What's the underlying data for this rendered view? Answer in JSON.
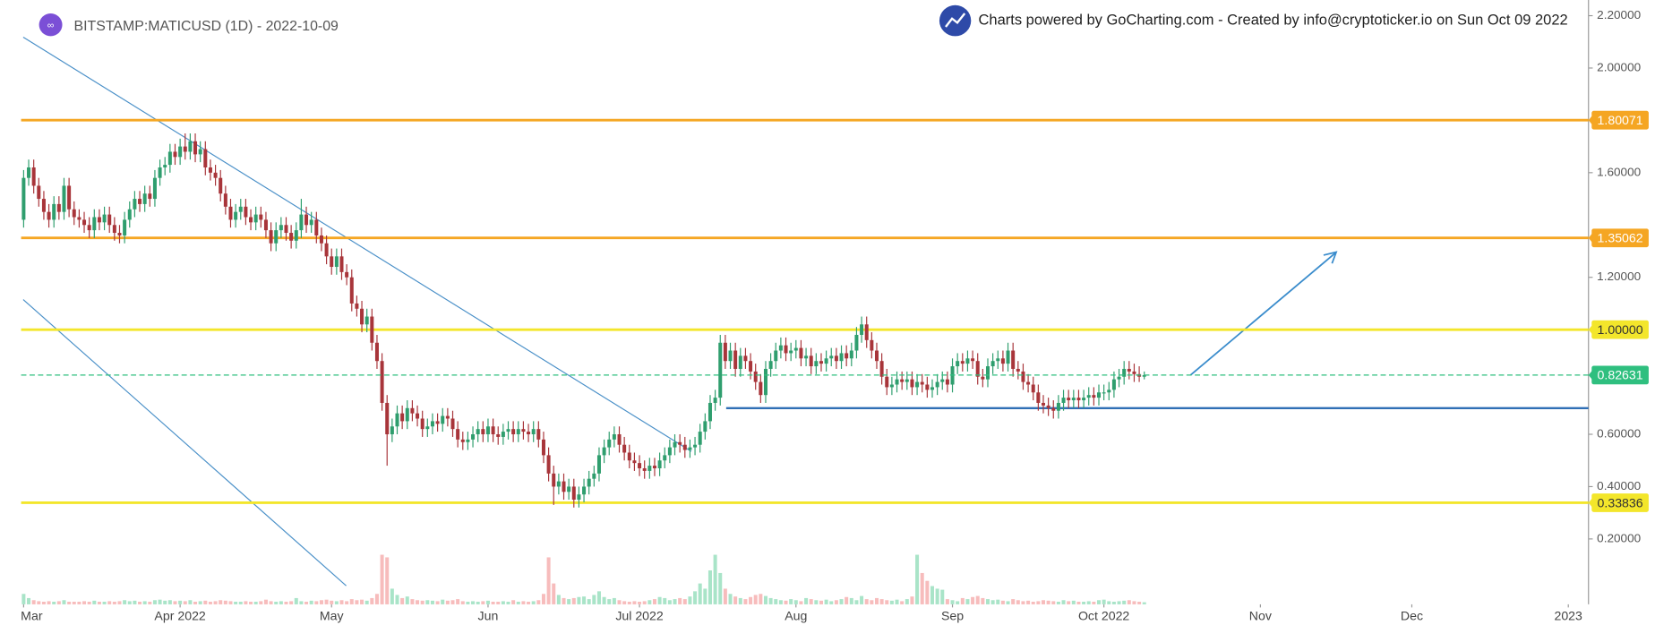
{
  "header": {
    "symbol": "BITSTAMP:MATICUSD (1D) - 2022-10-09",
    "credit": "Charts powered by GoCharting.com - Created by info@cryptoticker.io on Sun Oct 09 2022"
  },
  "chart_data": {
    "type": "candlestick",
    "open": [
      1.42,
      1.58,
      1.62,
      1.55,
      1.5,
      1.45,
      1.42,
      1.48,
      1.45,
      1.55,
      1.46,
      1.43,
      1.42,
      1.4,
      1.38,
      1.43,
      1.41,
      1.44,
      1.4,
      1.37,
      1.36,
      1.42,
      1.46,
      1.5,
      1.48,
      1.52,
      1.5,
      1.58,
      1.62,
      1.63,
      1.68,
      1.66,
      1.7,
      1.68,
      1.72,
      1.67,
      1.69,
      1.62,
      1.6,
      1.58,
      1.52,
      1.47,
      1.42,
      1.45,
      1.47,
      1.43,
      1.41,
      1.44,
      1.42,
      1.38,
      1.33,
      1.38,
      1.4,
      1.37,
      1.34,
      1.38,
      1.44,
      1.4,
      1.42,
      1.36,
      1.33,
      1.28,
      1.24,
      1.28,
      1.22,
      1.2,
      1.1,
      1.08,
      1.02,
      1.05,
      0.95,
      0.88,
      0.72,
      0.6,
      0.63,
      0.68,
      0.65,
      0.7,
      0.68,
      0.66,
      0.62,
      0.63,
      0.65,
      0.64,
      0.67,
      0.66,
      0.62,
      0.58,
      0.57,
      0.58,
      0.6,
      0.62,
      0.6,
      0.63,
      0.6,
      0.59,
      0.61,
      0.62,
      0.6,
      0.62,
      0.61,
      0.6,
      0.62,
      0.58,
      0.52,
      0.45,
      0.4,
      0.42,
      0.38,
      0.4,
      0.35,
      0.37,
      0.4,
      0.43,
      0.45,
      0.52,
      0.55,
      0.58,
      0.6,
      0.56,
      0.53,
      0.5,
      0.49,
      0.47,
      0.46,
      0.48,
      0.47,
      0.5,
      0.52,
      0.55,
      0.57,
      0.56,
      0.54,
      0.55,
      0.56,
      0.61,
      0.65,
      0.72,
      0.74,
      0.95,
      0.88,
      0.92,
      0.85,
      0.9,
      0.88,
      0.84,
      0.8,
      0.75,
      0.85,
      0.88,
      0.92,
      0.94,
      0.91,
      0.92,
      0.93,
      0.89,
      0.9,
      0.86,
      0.88,
      0.87,
      0.89,
      0.9,
      0.88,
      0.91,
      0.89,
      0.92,
      0.98,
      1.02,
      0.96,
      0.92,
      0.88,
      0.82,
      0.78,
      0.79,
      0.81,
      0.8,
      0.81,
      0.78,
      0.8,
      0.79,
      0.77,
      0.78,
      0.8,
      0.81,
      0.79,
      0.86,
      0.88,
      0.87,
      0.89,
      0.88,
      0.82,
      0.81,
      0.86,
      0.88,
      0.89,
      0.87,
      0.92,
      0.85,
      0.84,
      0.8,
      0.79,
      0.76,
      0.72,
      0.71,
      0.7,
      0.69,
      0.72,
      0.74,
      0.73,
      0.74,
      0.73,
      0.74,
      0.75,
      0.74,
      0.76,
      0.76,
      0.77,
      0.81,
      0.82,
      0.85,
      0.84,
      0.83,
      0.82
    ],
    "high": [
      1.61,
      1.65,
      1.65,
      1.58,
      1.53,
      1.48,
      1.51,
      1.51,
      1.58,
      1.58,
      1.49,
      1.46,
      1.45,
      1.43,
      1.46,
      1.46,
      1.47,
      1.47,
      1.43,
      1.4,
      1.45,
      1.49,
      1.53,
      1.53,
      1.55,
      1.55,
      1.61,
      1.65,
      1.66,
      1.71,
      1.71,
      1.73,
      1.75,
      1.75,
      1.75,
      1.72,
      1.72,
      1.65,
      1.63,
      1.61,
      1.55,
      1.5,
      1.48,
      1.5,
      1.5,
      1.46,
      1.47,
      1.47,
      1.45,
      1.41,
      1.41,
      1.43,
      1.43,
      1.4,
      1.41,
      1.5,
      1.47,
      1.45,
      1.45,
      1.39,
      1.36,
      1.31,
      1.31,
      1.31,
      1.25,
      1.23,
      1.13,
      1.11,
      1.08,
      1.08,
      0.98,
      0.91,
      0.75,
      0.66,
      0.71,
      0.71,
      0.73,
      0.73,
      0.71,
      0.69,
      0.66,
      0.68,
      0.68,
      0.7,
      0.7,
      0.69,
      0.65,
      0.61,
      0.61,
      0.63,
      0.65,
      0.65,
      0.66,
      0.66,
      0.63,
      0.64,
      0.65,
      0.65,
      0.65,
      0.65,
      0.64,
      0.65,
      0.65,
      0.61,
      0.55,
      0.48,
      0.45,
      0.45,
      0.43,
      0.43,
      0.4,
      0.43,
      0.46,
      0.48,
      0.55,
      0.58,
      0.61,
      0.63,
      0.63,
      0.59,
      0.56,
      0.53,
      0.52,
      0.5,
      0.51,
      0.51,
      0.53,
      0.55,
      0.58,
      0.6,
      0.6,
      0.59,
      0.58,
      0.59,
      0.64,
      0.68,
      0.75,
      0.77,
      0.98,
      0.98,
      0.95,
      0.95,
      0.93,
      0.93,
      0.91,
      0.87,
      0.83,
      0.88,
      0.91,
      0.95,
      0.97,
      0.97,
      0.95,
      0.96,
      0.96,
      0.93,
      0.93,
      0.91,
      0.91,
      0.92,
      0.93,
      0.93,
      0.94,
      0.94,
      0.95,
      1.01,
      1.05,
      1.05,
      0.99,
      0.95,
      0.91,
      0.85,
      0.82,
      0.84,
      0.84,
      0.84,
      0.84,
      0.83,
      0.83,
      0.82,
      0.81,
      0.83,
      0.84,
      0.84,
      0.89,
      0.91,
      0.91,
      0.92,
      0.92,
      0.91,
      0.85,
      0.89,
      0.91,
      0.92,
      0.92,
      0.95,
      0.95,
      0.88,
      0.87,
      0.83,
      0.82,
      0.79,
      0.75,
      0.74,
      0.73,
      0.75,
      0.77,
      0.77,
      0.77,
      0.77,
      0.77,
      0.78,
      0.78,
      0.79,
      0.79,
      0.8,
      0.84,
      0.85,
      0.88,
      0.88,
      0.87,
      0.86,
      0.84
    ],
    "low": [
      1.39,
      1.55,
      1.52,
      1.47,
      1.42,
      1.39,
      1.39,
      1.42,
      1.42,
      1.43,
      1.4,
      1.39,
      1.37,
      1.35,
      1.35,
      1.38,
      1.38,
      1.37,
      1.34,
      1.33,
      1.33,
      1.39,
      1.43,
      1.45,
      1.45,
      1.47,
      1.47,
      1.55,
      1.59,
      1.6,
      1.63,
      1.63,
      1.65,
      1.65,
      1.64,
      1.64,
      1.59,
      1.57,
      1.55,
      1.49,
      1.44,
      1.39,
      1.39,
      1.42,
      1.4,
      1.38,
      1.38,
      1.39,
      1.35,
      1.3,
      1.3,
      1.35,
      1.34,
      1.31,
      1.31,
      1.35,
      1.37,
      1.37,
      1.33,
      1.3,
      1.25,
      1.21,
      1.21,
      1.19,
      1.17,
      1.07,
      1.05,
      0.99,
      0.99,
      0.92,
      0.85,
      0.69,
      0.48,
      0.57,
      0.6,
      0.62,
      0.62,
      0.65,
      0.63,
      0.59,
      0.59,
      0.6,
      0.61,
      0.61,
      0.63,
      0.59,
      0.55,
      0.54,
      0.54,
      0.55,
      0.57,
      0.57,
      0.57,
      0.57,
      0.56,
      0.56,
      0.58,
      0.57,
      0.57,
      0.58,
      0.57,
      0.57,
      0.55,
      0.49,
      0.42,
      0.33,
      0.37,
      0.35,
      0.35,
      0.32,
      0.32,
      0.34,
      0.37,
      0.4,
      0.42,
      0.49,
      0.52,
      0.55,
      0.53,
      0.5,
      0.47,
      0.46,
      0.44,
      0.43,
      0.43,
      0.44,
      0.44,
      0.47,
      0.49,
      0.52,
      0.53,
      0.51,
      0.51,
      0.52,
      0.53,
      0.58,
      0.62,
      0.69,
      0.71,
      0.85,
      0.85,
      0.82,
      0.82,
      0.85,
      0.81,
      0.77,
      0.72,
      0.72,
      0.82,
      0.85,
      0.89,
      0.88,
      0.88,
      0.89,
      0.86,
      0.86,
      0.83,
      0.83,
      0.84,
      0.84,
      0.86,
      0.85,
      0.85,
      0.86,
      0.86,
      0.89,
      0.95,
      0.93,
      0.89,
      0.85,
      0.79,
      0.75,
      0.75,
      0.76,
      0.77,
      0.77,
      0.75,
      0.75,
      0.76,
      0.74,
      0.74,
      0.75,
      0.77,
      0.76,
      0.76,
      0.83,
      0.84,
      0.84,
      0.85,
      0.79,
      0.78,
      0.78,
      0.83,
      0.85,
      0.84,
      0.84,
      0.82,
      0.81,
      0.77,
      0.76,
      0.73,
      0.69,
      0.68,
      0.67,
      0.66,
      0.66,
      0.69,
      0.7,
      0.7,
      0.7,
      0.7,
      0.71,
      0.71,
      0.71,
      0.73,
      0.73,
      0.74,
      0.78,
      0.79,
      0.81,
      0.8,
      0.8,
      0.81
    ],
    "close": [
      1.58,
      1.62,
      1.55,
      1.5,
      1.45,
      1.42,
      1.48,
      1.45,
      1.55,
      1.46,
      1.43,
      1.42,
      1.4,
      1.38,
      1.43,
      1.41,
      1.44,
      1.4,
      1.37,
      1.36,
      1.42,
      1.46,
      1.5,
      1.48,
      1.52,
      1.5,
      1.58,
      1.62,
      1.63,
      1.68,
      1.66,
      1.7,
      1.68,
      1.72,
      1.67,
      1.69,
      1.62,
      1.6,
      1.58,
      1.52,
      1.47,
      1.42,
      1.45,
      1.47,
      1.43,
      1.41,
      1.44,
      1.42,
      1.38,
      1.33,
      1.38,
      1.4,
      1.37,
      1.34,
      1.38,
      1.44,
      1.4,
      1.42,
      1.36,
      1.33,
      1.28,
      1.24,
      1.28,
      1.22,
      1.2,
      1.1,
      1.08,
      1.02,
      1.05,
      0.95,
      0.88,
      0.72,
      0.6,
      0.63,
      0.68,
      0.65,
      0.7,
      0.68,
      0.66,
      0.62,
      0.63,
      0.65,
      0.64,
      0.67,
      0.66,
      0.62,
      0.58,
      0.57,
      0.58,
      0.6,
      0.62,
      0.6,
      0.63,
      0.6,
      0.59,
      0.61,
      0.62,
      0.6,
      0.62,
      0.61,
      0.6,
      0.62,
      0.58,
      0.52,
      0.45,
      0.4,
      0.42,
      0.38,
      0.4,
      0.35,
      0.37,
      0.4,
      0.43,
      0.45,
      0.52,
      0.55,
      0.58,
      0.6,
      0.56,
      0.53,
      0.5,
      0.49,
      0.47,
      0.46,
      0.48,
      0.47,
      0.5,
      0.52,
      0.55,
      0.57,
      0.56,
      0.54,
      0.55,
      0.56,
      0.61,
      0.65,
      0.72,
      0.74,
      0.95,
      0.88,
      0.92,
      0.85,
      0.9,
      0.88,
      0.84,
      0.8,
      0.75,
      0.85,
      0.88,
      0.92,
      0.94,
      0.91,
      0.92,
      0.93,
      0.89,
      0.9,
      0.86,
      0.88,
      0.87,
      0.89,
      0.9,
      0.88,
      0.91,
      0.89,
      0.92,
      0.98,
      1.02,
      0.96,
      0.92,
      0.88,
      0.82,
      0.78,
      0.79,
      0.81,
      0.8,
      0.81,
      0.78,
      0.8,
      0.79,
      0.77,
      0.78,
      0.8,
      0.81,
      0.79,
      0.86,
      0.88,
      0.87,
      0.89,
      0.88,
      0.82,
      0.81,
      0.86,
      0.88,
      0.89,
      0.87,
      0.92,
      0.85,
      0.84,
      0.8,
      0.79,
      0.76,
      0.72,
      0.71,
      0.7,
      0.69,
      0.72,
      0.74,
      0.73,
      0.74,
      0.73,
      0.74,
      0.75,
      0.74,
      0.76,
      0.76,
      0.77,
      0.81,
      0.82,
      0.85,
      0.84,
      0.83,
      0.82,
      0.82631
    ],
    "volume": [
      20,
      12,
      8,
      6,
      5,
      6,
      5,
      6,
      8,
      5,
      5,
      5,
      6,
      5,
      7,
      5,
      5,
      6,
      5,
      6,
      8,
      6,
      7,
      5,
      6,
      5,
      8,
      9,
      7,
      8,
      6,
      7,
      6,
      8,
      5,
      6,
      7,
      5,
      6,
      8,
      7,
      6,
      5,
      5,
      6,
      5,
      5,
      6,
      9,
      6,
      5,
      6,
      5,
      6,
      12,
      6,
      5,
      7,
      6,
      8,
      9,
      7,
      6,
      8,
      6,
      10,
      8,
      9,
      7,
      12,
      20,
      95,
      90,
      30,
      18,
      12,
      15,
      10,
      8,
      7,
      8,
      7,
      6,
      9,
      7,
      8,
      10,
      6,
      5,
      6,
      5,
      6,
      7,
      5,
      5,
      6,
      5,
      8,
      5,
      6,
      5,
      6,
      8,
      20,
      90,
      40,
      18,
      12,
      10,
      12,
      14,
      15,
      10,
      18,
      25,
      14,
      10,
      12,
      8,
      6,
      5,
      6,
      5,
      6,
      8,
      10,
      14,
      12,
      8,
      10,
      12,
      10,
      15,
      25,
      40,
      30,
      65,
      95,
      60,
      30,
      20,
      15,
      12,
      10,
      14,
      18,
      20,
      16,
      12,
      10,
      8,
      7,
      10,
      8,
      6,
      12,
      10,
      8,
      7,
      9,
      6,
      8,
      10,
      14,
      12,
      8,
      16,
      10,
      8,
      12,
      10,
      8,
      7,
      9,
      6,
      10,
      15,
      95,
      60,
      45,
      35,
      30,
      28,
      10,
      8,
      6,
      12,
      10,
      14,
      16,
      12,
      10,
      8,
      9,
      7,
      6,
      10,
      8,
      6,
      7,
      5,
      6,
      8,
      7,
      6,
      5,
      8,
      6,
      7,
      5,
      5,
      6,
      5,
      8,
      9,
      6,
      5,
      6,
      7,
      8,
      6,
      5,
      4
    ],
    "up_color": "#2f9e6e",
    "down_color": "#a8353a",
    "volume_up_color": "#a9e4c8",
    "volume_down_color": "#f7bcbc",
    "xlim": [
      -0.5,
      310
    ],
    "xticks": [
      {
        "value": 0,
        "label": "Mar"
      },
      {
        "value": 31,
        "label": "Apr 2022"
      },
      {
        "value": 61,
        "label": "May"
      },
      {
        "value": 92,
        "label": "Jun"
      },
      {
        "value": 122,
        "label": "Jul 2022"
      },
      {
        "value": 153,
        "label": "Aug"
      },
      {
        "value": 184,
        "label": "Sep"
      },
      {
        "value": 214,
        "label": "Oct 2022"
      },
      {
        "value": 245,
        "label": "Nov"
      },
      {
        "value": 275,
        "label": "Dec"
      },
      {
        "value": 306,
        "label": "2023"
      }
    ],
    "ylim": [
      -0.05,
      2.26
    ],
    "yticks": [
      {
        "value": 2.2,
        "label": "2.20000"
      },
      {
        "value": 2.0,
        "label": "2.00000"
      },
      {
        "value": 1.8,
        "label": "1.80000"
      },
      {
        "value": 1.6,
        "label": "1.60000"
      },
      {
        "value": 1.2,
        "label": "1.20000"
      },
      {
        "value": 1.0,
        "label": "1.00000"
      },
      {
        "value": 0.6,
        "label": "0.60000"
      },
      {
        "value": 0.4,
        "label": "0.40000"
      },
      {
        "value": 0.2,
        "label": "0.20000"
      }
    ],
    "levels": [
      {
        "value": 1.80071,
        "label": "1.80071",
        "color": "#f5a623"
      },
      {
        "value": 1.35062,
        "label": "1.35062",
        "color": "#f5a623"
      },
      {
        "value": 1,
        "label": "1.00000",
        "color": "#f3e62b"
      },
      {
        "value": 0.33836,
        "label": "0.33836",
        "color": "#f3e62b"
      },
      {
        "value": 0.7,
        "color": "#2f6fb5"
      }
    ],
    "last_color": "#2fbf7f"
  }
}
